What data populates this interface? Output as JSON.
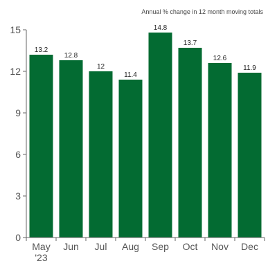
{
  "colors": {
    "bar": "#036b32",
    "axis": "#666666",
    "text": "#555555"
  },
  "chart_data": {
    "type": "bar",
    "subtitle": "Annual % change in 12 month moving totals",
    "categories": [
      "May",
      "Jun",
      "Jul",
      "Aug",
      "Sep",
      "Oct",
      "Nov",
      "Dec"
    ],
    "year_label": "'23",
    "values": [
      13.2,
      12.8,
      12,
      11.4,
      14.8,
      13.7,
      12.6,
      11.9
    ],
    "value_labels": [
      "13.2",
      "12.8",
      "12",
      "11.4",
      "14.8",
      "13.7",
      "12.6",
      "11.9"
    ],
    "yticks": [
      0,
      3,
      6,
      9,
      12,
      15
    ],
    "ylim": [
      0,
      15
    ],
    "grid": false,
    "legend": "none"
  }
}
